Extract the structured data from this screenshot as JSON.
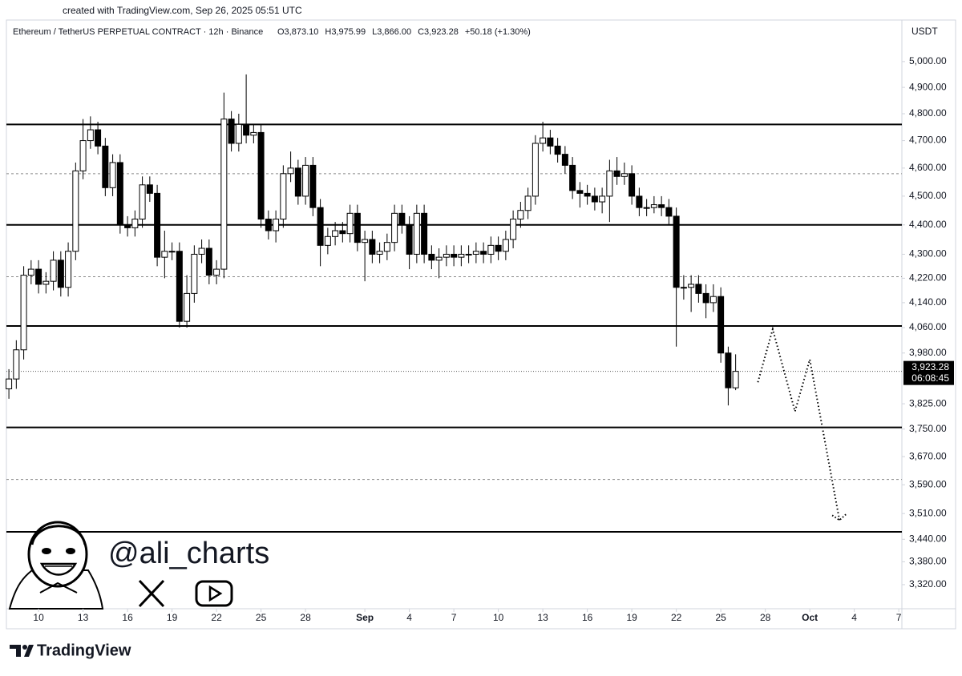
{
  "chart_data": {
    "type": "candlestick",
    "credit": "created with TradingView.com, Sep 26, 2025 05:51 UTC",
    "symbol": "Ethereum / TetherUS PERPETUAL CONTRACT · 12h · Binance",
    "ohlc_text": [
      "O3,873.10",
      "H3,975.99",
      "L3,866.00",
      "C3,923.28",
      "+50.18 (+1.30%)"
    ],
    "currency": "USDT",
    "last_price": {
      "value": 3923.28,
      "label": "3,923.28"
    },
    "countdown": "06:08:45",
    "watermark": "@ali_charts",
    "brand": "TradingView",
    "log_scale": true,
    "up_color": "#ffffff",
    "down_color": "#000000",
    "ylim": [
      3258,
      5085
    ],
    "yticks": [
      {
        "value": 5000,
        "label": "5,000.00"
      },
      {
        "value": 4900,
        "label": "4,900.00"
      },
      {
        "value": 4800,
        "label": "4,800.00"
      },
      {
        "value": 4700,
        "label": "4,700.00"
      },
      {
        "value": 4600,
        "label": "4,600.00"
      },
      {
        "value": 4500,
        "label": "4,500.00"
      },
      {
        "value": 4400,
        "label": "4,400.00"
      },
      {
        "value": 4300,
        "label": "4,300.00"
      },
      {
        "value": 4220,
        "label": "4,220.00"
      },
      {
        "value": 4140,
        "label": "4,140.00"
      },
      {
        "value": 4060,
        "label": "4,060.00"
      },
      {
        "value": 3980,
        "label": "3,980.00"
      },
      {
        "value": 3825,
        "label": "3,825.00"
      },
      {
        "value": 3750,
        "label": "3,750.00"
      },
      {
        "value": 3670,
        "label": "3,670.00"
      },
      {
        "value": 3590,
        "label": "3,590.00"
      },
      {
        "value": 3510,
        "label": "3,510.00"
      },
      {
        "value": 3440,
        "label": "3,440.00"
      },
      {
        "value": 3380,
        "label": "3,380.00"
      },
      {
        "value": 3320,
        "label": "3,320.00"
      }
    ],
    "xlim": [
      "2025-08-07 20:00",
      "2025-10-07 05:00"
    ],
    "xticks": [
      {
        "value": "2025-08-10",
        "label": "10"
      },
      {
        "value": "2025-08-13",
        "label": "13"
      },
      {
        "value": "2025-08-16",
        "label": "16"
      },
      {
        "value": "2025-08-19",
        "label": "19"
      },
      {
        "value": "2025-08-22",
        "label": "22"
      },
      {
        "value": "2025-08-25",
        "label": "25"
      },
      {
        "value": "2025-08-28",
        "label": "28"
      },
      {
        "value": "2025-09-01",
        "label": "Sep"
      },
      {
        "value": "2025-09-04",
        "label": "4"
      },
      {
        "value": "2025-09-07",
        "label": "7"
      },
      {
        "value": "2025-09-10",
        "label": "10"
      },
      {
        "value": "2025-09-13",
        "label": "13"
      },
      {
        "value": "2025-09-16",
        "label": "16"
      },
      {
        "value": "2025-09-19",
        "label": "19"
      },
      {
        "value": "2025-09-22",
        "label": "22"
      },
      {
        "value": "2025-09-25",
        "label": "25"
      },
      {
        "value": "2025-09-28",
        "label": "28"
      },
      {
        "value": "2025-10-01",
        "label": "Oct"
      },
      {
        "value": "2025-10-04",
        "label": "4"
      },
      {
        "value": "2025-10-07",
        "label": "7"
      }
    ],
    "candles": {
      "x": [
        "2025-08-08 00:00",
        "2025-08-08 12:00",
        "2025-08-09 00:00",
        "2025-08-09 12:00",
        "2025-08-10 00:00",
        "2025-08-10 12:00",
        "2025-08-11 00:00",
        "2025-08-11 12:00",
        "2025-08-12 00:00",
        "2025-08-12 12:00",
        "2025-08-13 00:00",
        "2025-08-13 12:00",
        "2025-08-14 00:00",
        "2025-08-14 12:00",
        "2025-08-15 00:00",
        "2025-08-15 12:00",
        "2025-08-16 00:00",
        "2025-08-16 12:00",
        "2025-08-17 00:00",
        "2025-08-17 12:00",
        "2025-08-18 00:00",
        "2025-08-18 12:00",
        "2025-08-19 00:00",
        "2025-08-19 12:00",
        "2025-08-20 00:00",
        "2025-08-20 12:00",
        "2025-08-21 00:00",
        "2025-08-21 12:00",
        "2025-08-22 00:00",
        "2025-08-22 12:00",
        "2025-08-23 00:00",
        "2025-08-23 12:00",
        "2025-08-24 00:00",
        "2025-08-24 12:00",
        "2025-08-25 00:00",
        "2025-08-25 12:00",
        "2025-08-26 00:00",
        "2025-08-26 12:00",
        "2025-08-27 00:00",
        "2025-08-27 12:00",
        "2025-08-28 00:00",
        "2025-08-28 12:00",
        "2025-08-29 00:00",
        "2025-08-29 12:00",
        "2025-08-30 00:00",
        "2025-08-30 12:00",
        "2025-08-31 00:00",
        "2025-08-31 12:00",
        "2025-09-01 00:00",
        "2025-09-01 12:00",
        "2025-09-02 00:00",
        "2025-09-02 12:00",
        "2025-09-03 00:00",
        "2025-09-03 12:00",
        "2025-09-04 00:00",
        "2025-09-04 12:00",
        "2025-09-05 00:00",
        "2025-09-05 12:00",
        "2025-09-06 00:00",
        "2025-09-06 12:00",
        "2025-09-07 00:00",
        "2025-09-07 12:00",
        "2025-09-08 00:00",
        "2025-09-08 12:00",
        "2025-09-09 00:00",
        "2025-09-09 12:00",
        "2025-09-10 00:00",
        "2025-09-10 12:00",
        "2025-09-11 00:00",
        "2025-09-11 12:00",
        "2025-09-12 00:00",
        "2025-09-12 12:00",
        "2025-09-13 00:00",
        "2025-09-13 12:00",
        "2025-09-14 00:00",
        "2025-09-14 12:00",
        "2025-09-15 00:00",
        "2025-09-15 12:00",
        "2025-09-16 00:00",
        "2025-09-16 12:00",
        "2025-09-17 00:00",
        "2025-09-17 12:00",
        "2025-09-18 00:00",
        "2025-09-18 12:00",
        "2025-09-19 00:00",
        "2025-09-19 12:00",
        "2025-09-20 00:00",
        "2025-09-20 12:00",
        "2025-09-21 00:00",
        "2025-09-21 12:00",
        "2025-09-22 00:00",
        "2025-09-22 12:00",
        "2025-09-23 00:00",
        "2025-09-23 12:00",
        "2025-09-24 00:00",
        "2025-09-24 12:00",
        "2025-09-25 00:00",
        "2025-09-25 12:00",
        "2025-09-26 00:00"
      ],
      "open": [
        3870,
        3900,
        3990,
        4230,
        4250,
        4200,
        4210,
        4280,
        4190,
        4310,
        4590,
        4700,
        4740,
        4680,
        4530,
        4620,
        4400,
        4390,
        4420,
        4540,
        4510,
        4290,
        4310,
        4310,
        4080,
        4170,
        4300,
        4320,
        4230,
        4250,
        4780,
        4690,
        4760,
        4720,
        4730,
        4420,
        4380,
        4420,
        4580,
        4600,
        4500,
        4610,
        4460,
        4330,
        4360,
        4380,
        4370,
        4440,
        4340,
        4350,
        4300,
        4310,
        4340,
        4440,
        4400,
        4300,
        4440,
        4300,
        4280,
        4290,
        4300,
        4290,
        4300,
        4300,
        4310,
        4300,
        4330,
        4310,
        4350,
        4420,
        4450,
        4500,
        4690,
        4710,
        4680,
        4650,
        4610,
        4520,
        4510,
        4500,
        4480,
        4500,
        4590,
        4570,
        4580,
        4500,
        4460,
        4460,
        4470,
        4460,
        4430,
        4190,
        4190,
        4200,
        4170,
        4140,
        4160,
        3980,
        3873.1
      ],
      "high": [
        3930,
        4020,
        4260,
        4280,
        4280,
        4240,
        4310,
        4310,
        4340,
        4620,
        4780,
        4790,
        4770,
        4710,
        4650,
        4650,
        4430,
        4450,
        4570,
        4570,
        4540,
        4380,
        4340,
        4340,
        4230,
        4330,
        4350,
        4350,
        4280,
        4880,
        4810,
        4800,
        4950,
        4760,
        4760,
        4450,
        4450,
        4610,
        4660,
        4630,
        4640,
        4640,
        4490,
        4390,
        4410,
        4410,
        4470,
        4470,
        4380,
        4380,
        4340,
        4370,
        4470,
        4470,
        4430,
        4470,
        4470,
        4330,
        4320,
        4330,
        4330,
        4330,
        4330,
        4340,
        4340,
        4360,
        4360,
        4380,
        4450,
        4480,
        4530,
        4720,
        4770,
        4740,
        4710,
        4680,
        4640,
        4550,
        4540,
        4530,
        4530,
        4630,
        4640,
        4620,
        4610,
        4530,
        4490,
        4500,
        4500,
        4490,
        4460,
        4230,
        4230,
        4230,
        4200,
        4200,
        4190,
        4000,
        3975.99
      ],
      "low": [
        3840,
        3870,
        3960,
        4200,
        4170,
        4170,
        4180,
        4160,
        4160,
        4280,
        4560,
        4670,
        4650,
        4500,
        4500,
        4370,
        4360,
        4360,
        4390,
        4480,
        4260,
        4220,
        4280,
        4060,
        4060,
        4140,
        4270,
        4200,
        4200,
        4220,
        4660,
        4660,
        4690,
        4690,
        4390,
        4350,
        4340,
        4390,
        4550,
        4470,
        4470,
        4430,
        4260,
        4300,
        4330,
        4340,
        4340,
        4310,
        4210,
        4270,
        4270,
        4280,
        4310,
        4370,
        4250,
        4270,
        4270,
        4250,
        4220,
        4260,
        4260,
        4260,
        4270,
        4270,
        4270,
        4270,
        4280,
        4280,
        4320,
        4390,
        4420,
        4470,
        4660,
        4650,
        4620,
        4580,
        4490,
        4460,
        4470,
        4450,
        4440,
        4410,
        4540,
        4540,
        4470,
        4430,
        4430,
        4440,
        4430,
        4400,
        4000,
        4150,
        4110,
        4140,
        4090,
        4110,
        3950,
        3820,
        3866
      ],
      "close": [
        3900,
        3990,
        4230,
        4250,
        4200,
        4210,
        4280,
        4190,
        4310,
        4590,
        4700,
        4740,
        4680,
        4530,
        4620,
        4400,
        4390,
        4420,
        4540,
        4510,
        4290,
        4310,
        4310,
        4080,
        4170,
        4300,
        4320,
        4230,
        4250,
        4780,
        4690,
        4760,
        4720,
        4730,
        4420,
        4380,
        4420,
        4580,
        4600,
        4500,
        4610,
        4460,
        4330,
        4360,
        4380,
        4370,
        4440,
        4340,
        4350,
        4300,
        4310,
        4340,
        4440,
        4400,
        4300,
        4440,
        4300,
        4280,
        4290,
        4300,
        4290,
        4300,
        4300,
        4310,
        4300,
        4330,
        4310,
        4350,
        4420,
        4450,
        4500,
        4690,
        4710,
        4680,
        4650,
        4610,
        4520,
        4510,
        4500,
        4480,
        4500,
        4590,
        4570,
        4580,
        4500,
        4460,
        4460,
        4470,
        4460,
        4430,
        4190,
        4190,
        4200,
        4170,
        4140,
        4160,
        3980,
        3873.1,
        3923.28
      ]
    },
    "levels": [
      {
        "value": 4760,
        "style": "solid"
      },
      {
        "value": 4580,
        "style": "dashed"
      },
      {
        "value": 4400,
        "style": "solid"
      },
      {
        "value": 4225,
        "style": "dashed"
      },
      {
        "value": 4065,
        "style": "solid"
      },
      {
        "value": 3755,
        "style": "solid"
      },
      {
        "value": 3605,
        "style": "dashed"
      },
      {
        "value": 3460,
        "style": "solid"
      }
    ],
    "forecast": {
      "x": [
        "2025-09-27 12:00",
        "2025-09-28 12:00",
        "2025-09-30 00:00",
        "2025-10-01 00:00",
        "2025-10-03 00:00"
      ],
      "y": [
        3890,
        4055,
        3802,
        3960,
        3492
      ]
    }
  }
}
